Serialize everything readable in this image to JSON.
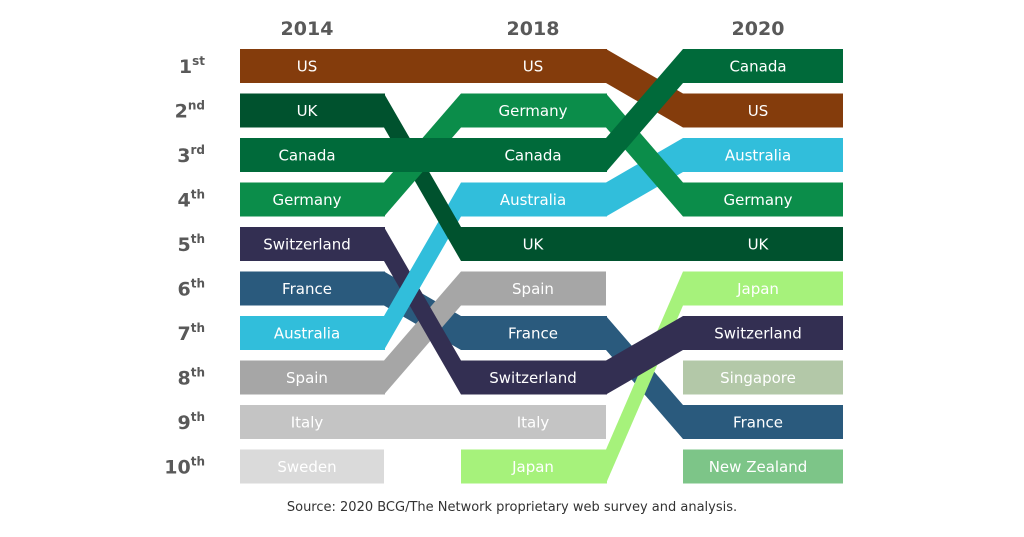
{
  "chart_data": {
    "type": "bump",
    "years": [
      "2014",
      "2018",
      "2020"
    ],
    "ranks": [
      {
        "num": "1",
        "suffix": "st"
      },
      {
        "num": "2",
        "suffix": "nd"
      },
      {
        "num": "3",
        "suffix": "rd"
      },
      {
        "num": "4",
        "suffix": "th"
      },
      {
        "num": "5",
        "suffix": "th"
      },
      {
        "num": "6",
        "suffix": "th"
      },
      {
        "num": "7",
        "suffix": "th"
      },
      {
        "num": "8",
        "suffix": "th"
      },
      {
        "num": "9",
        "suffix": "th"
      },
      {
        "num": "10",
        "suffix": "th"
      }
    ],
    "series": [
      {
        "name": "US",
        "color": "#843C0C",
        "text": "#ffffff",
        "ranks": [
          1,
          1,
          2
        ]
      },
      {
        "name": "UK",
        "color": "#00522E",
        "text": "#ffffff",
        "ranks": [
          2,
          5,
          5
        ]
      },
      {
        "name": "Canada",
        "color": "#006A3A",
        "text": "#ffffff",
        "ranks": [
          3,
          3,
          1
        ]
      },
      {
        "name": "Germany",
        "color": "#0B8D4A",
        "text": "#ffffff",
        "ranks": [
          4,
          2,
          4
        ]
      },
      {
        "name": "Switzerland",
        "color": "#332F52",
        "text": "#ffffff",
        "ranks": [
          5,
          8,
          7
        ]
      },
      {
        "name": "France",
        "color": "#2A5A7D",
        "text": "#ffffff",
        "ranks": [
          6,
          7,
          9
        ]
      },
      {
        "name": "Australia",
        "color": "#31BEDB",
        "text": "#ffffff",
        "ranks": [
          7,
          4,
          3
        ]
      },
      {
        "name": "Spain",
        "color": "#A6A6A6",
        "text": "#ffffff",
        "ranks": [
          8,
          6,
          null
        ]
      },
      {
        "name": "Italy",
        "color": "#C4C4C4",
        "text": "#ffffff",
        "ranks": [
          9,
          9,
          null
        ]
      },
      {
        "name": "Sweden",
        "color": "#DADADA",
        "text": "#ffffff",
        "ranks": [
          10,
          null,
          null
        ]
      },
      {
        "name": "Japan",
        "color": "#A6F27B",
        "text": "#ffffff",
        "ranks": [
          null,
          10,
          6
        ]
      },
      {
        "name": "Singapore",
        "color": "#B3C8A8",
        "text": "#ffffff",
        "ranks": [
          null,
          null,
          8
        ]
      },
      {
        "name": "New Zealand",
        "color": "#7DC588",
        "text": "#ffffff",
        "ranks": [
          null,
          null,
          10
        ]
      }
    ]
  },
  "source": "Source: 2020 BCG/The Network proprietary web survey and analysis."
}
